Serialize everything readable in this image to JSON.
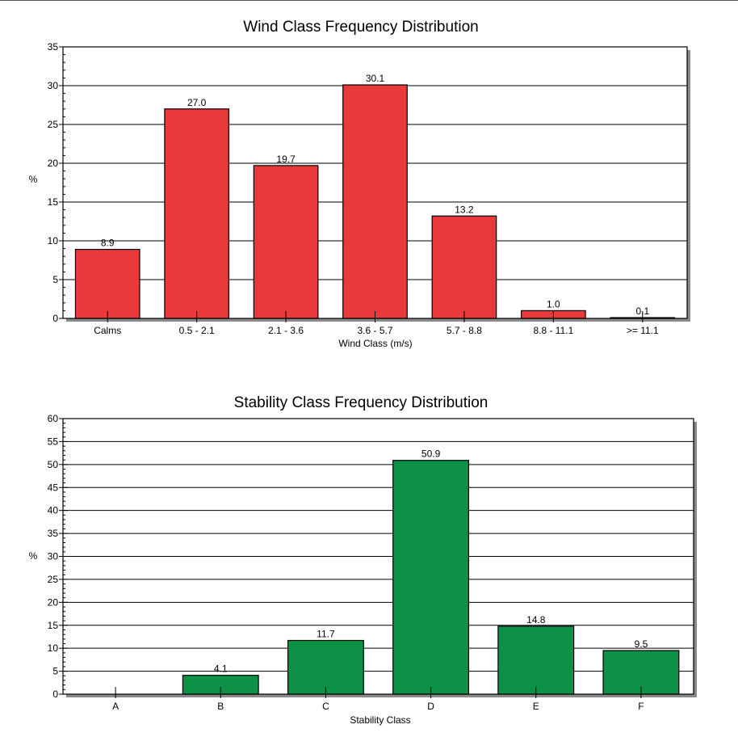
{
  "chart_data": [
    {
      "type": "bar",
      "title": "Wind Class Frequency Distribution",
      "xlabel": "Wind Class (m/s)",
      "ylabel": "%",
      "categories": [
        "Calms",
        "0.5 -  2.1",
        "2.1 -  3.6",
        "3.6 -  5.7",
        "5.7 -  8.8",
        "8.8 - 11.1",
        ">= 11.1"
      ],
      "values": [
        8.9,
        27.0,
        19.7,
        30.1,
        13.2,
        1.0,
        0.1
      ],
      "value_labels": [
        "8.9",
        "27.0",
        "19.7",
        "30.1",
        "13.2",
        "1.0",
        "0.1"
      ],
      "ylim": [
        0,
        35
      ],
      "ytick_step": 5,
      "ytick_labels": [
        "0",
        "5",
        "10",
        "15",
        "20",
        "25",
        "30",
        "35"
      ],
      "minor_tick_step": 1,
      "grid": true,
      "bar_color": "#e8393b"
    },
    {
      "type": "bar",
      "title": "Stability Class Frequency Distribution",
      "xlabel": "Stability Class",
      "ylabel": "%",
      "categories": [
        "A",
        "B",
        "C",
        "D",
        "E",
        "F"
      ],
      "values": [
        0,
        4.1,
        11.7,
        50.9,
        14.8,
        9.5
      ],
      "value_labels": [
        "",
        "4.1",
        "11.7",
        "50.9",
        "14.8",
        "9.5"
      ],
      "ylim": [
        0,
        60
      ],
      "ytick_step": 5,
      "ytick_labels": [
        "0",
        "5",
        "10",
        "15",
        "20",
        "25",
        "30",
        "35",
        "40",
        "45",
        "50",
        "55",
        "60"
      ],
      "minor_tick_step": 1,
      "grid": true,
      "bar_color": "#0d9146"
    }
  ],
  "colors": {
    "grid": "#000000",
    "frame_shadow": "#8a8a8a",
    "bar_outline": "#000000"
  }
}
